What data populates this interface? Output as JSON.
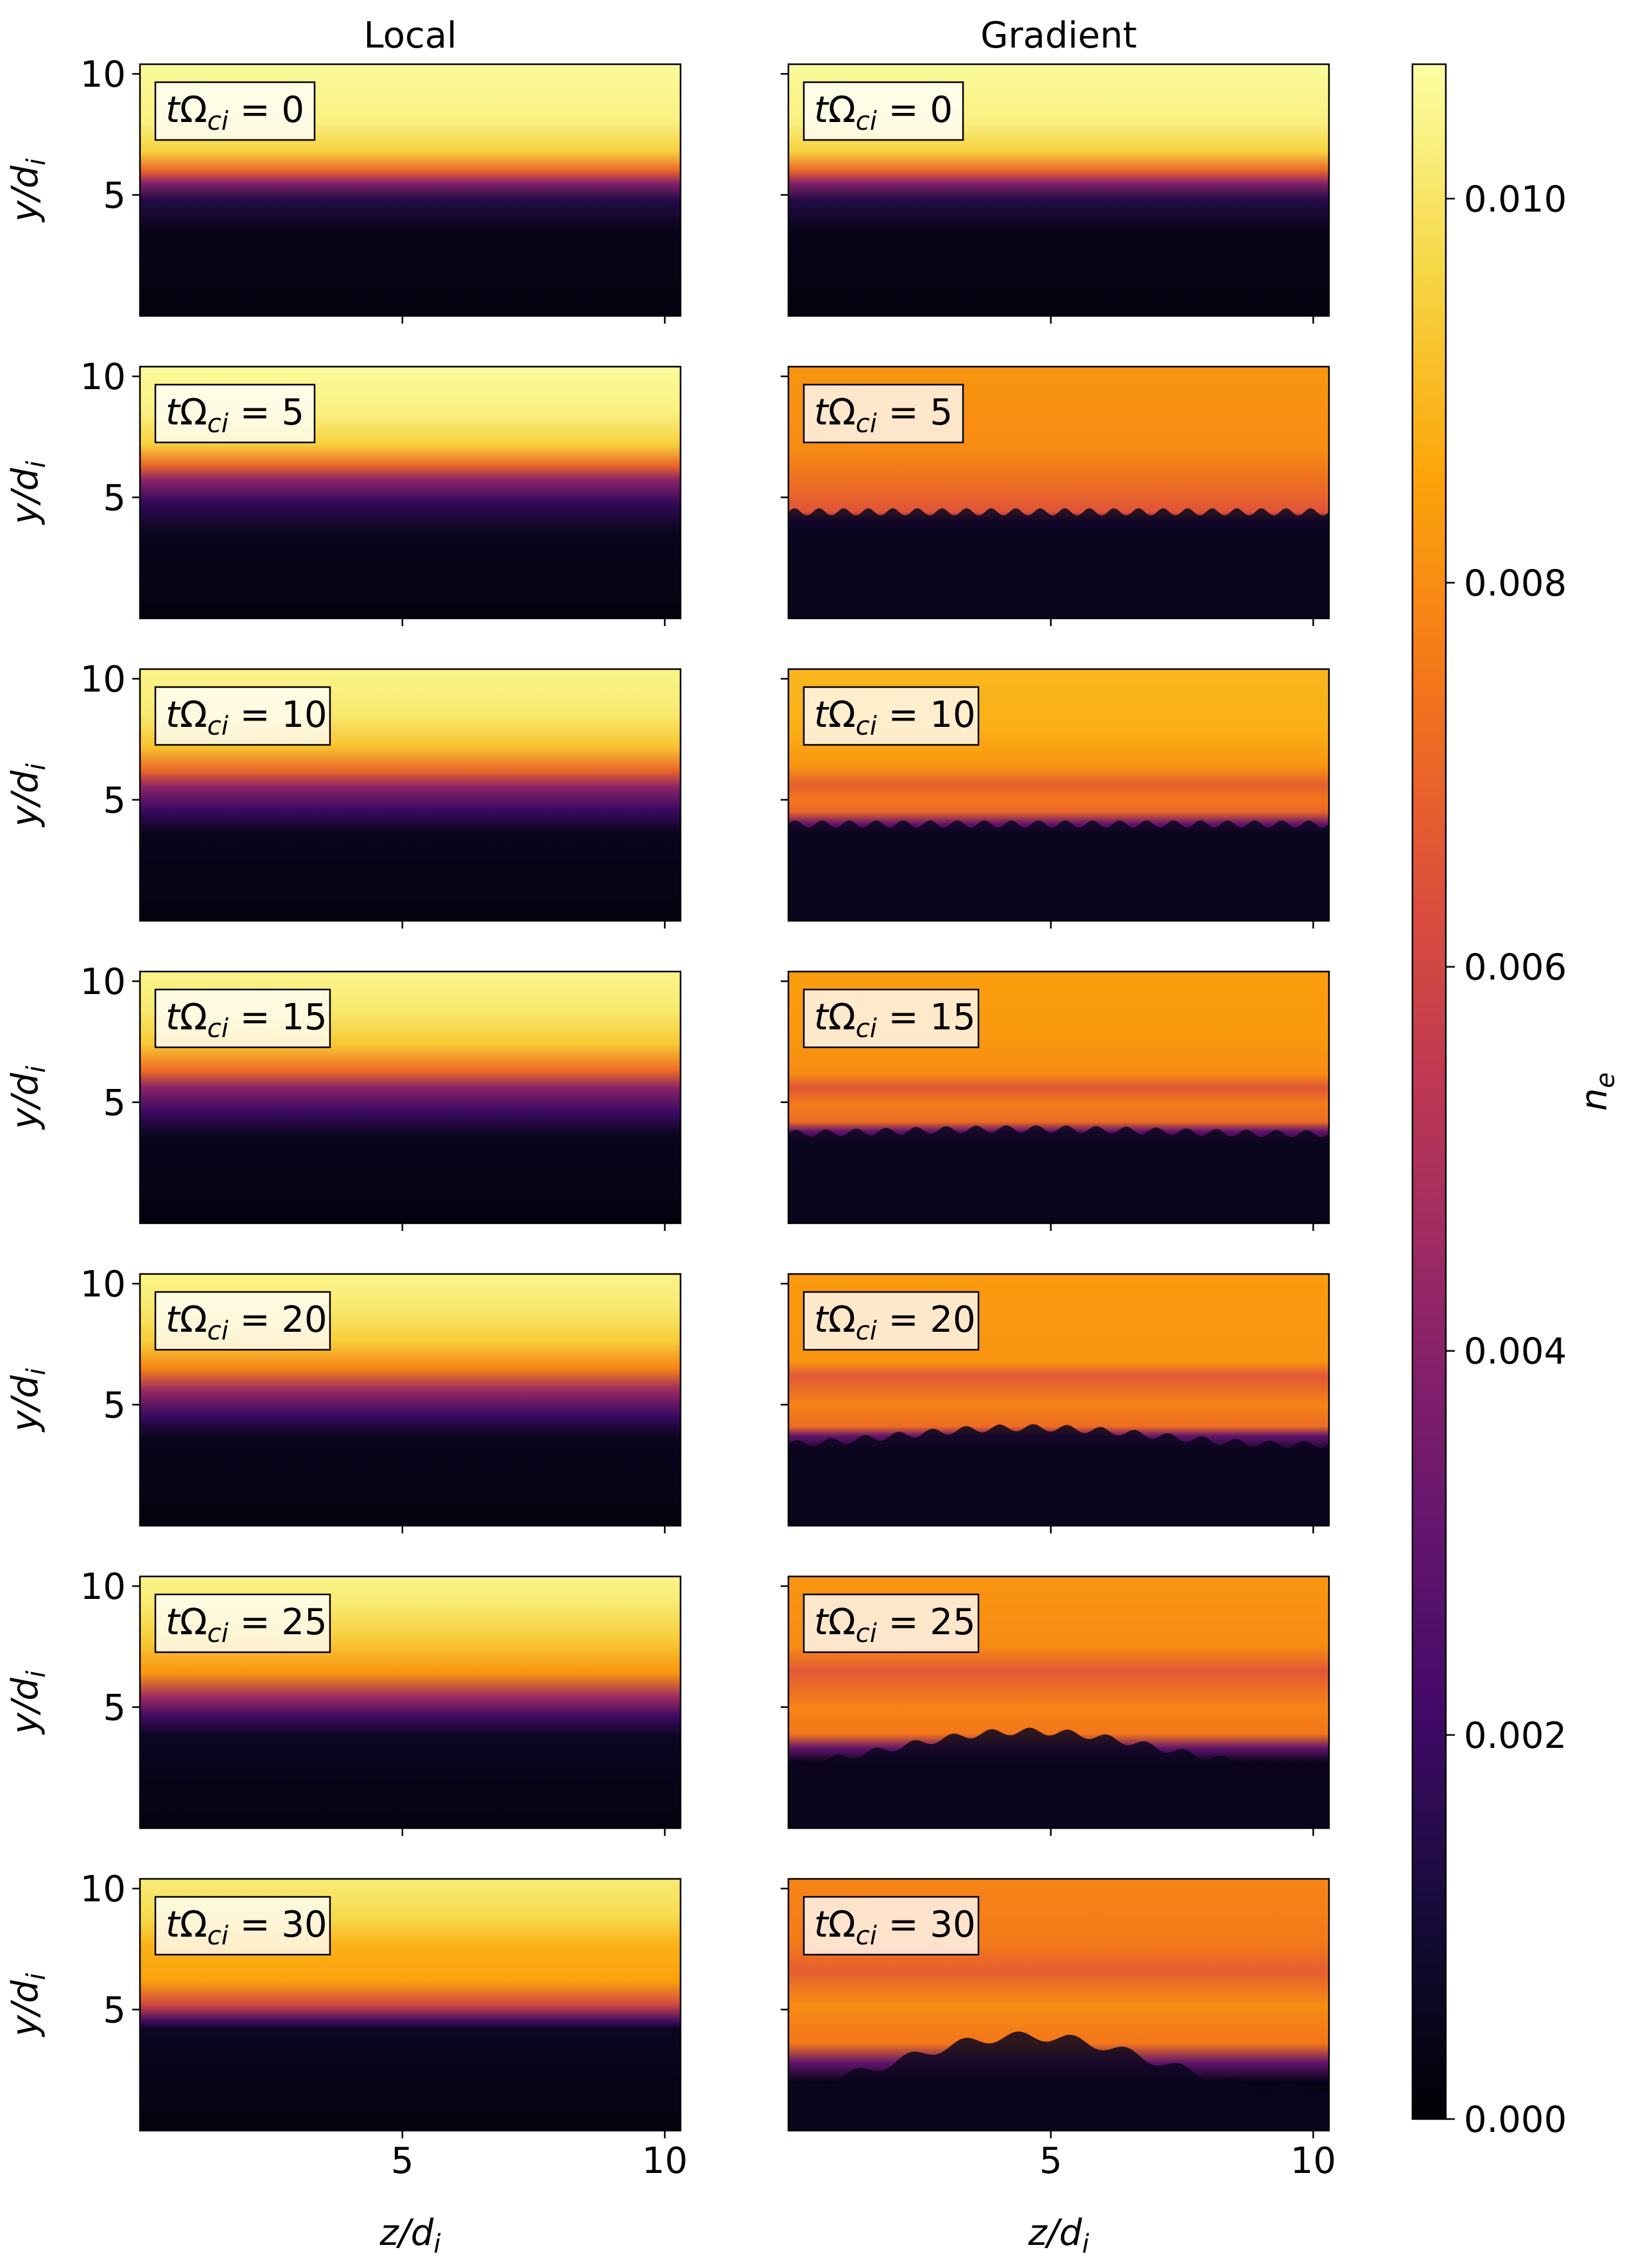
{
  "chart_data": {
    "type": "heatmap",
    "layout": "7 rows x 2 columns, shared colorbar",
    "column_titles": [
      "Local",
      "Gradient"
    ],
    "row_annotations": [
      "tΩ_ci = 0",
      "tΩ_ci = 5",
      "tΩ_ci = 10",
      "tΩ_ci = 15",
      "tΩ_ci = 20",
      "tΩ_ci = 25",
      "tΩ_ci = 30"
    ],
    "row_times": [
      0,
      5,
      10,
      15,
      20,
      25,
      30
    ],
    "annotation_prefix": "tΩ",
    "annotation_sub": "ci",
    "annotation_eq": " = ",
    "xlabel": "z/d_i",
    "ylabel": "y/d_i",
    "xlabel_main": "z/d",
    "ylabel_main": "y/d",
    "label_sub": "i",
    "xlim": [
      0,
      10.3
    ],
    "ylim": [
      0,
      10.4
    ],
    "xticks": [
      5,
      10
    ],
    "xtick_labels": [
      "5",
      "10"
    ],
    "yticks": [
      5,
      10
    ],
    "ytick_labels": [
      "5",
      "10"
    ],
    "colorbar": {
      "label": "n_e",
      "label_main": "n",
      "label_sub": "e",
      "vmin": 0.0,
      "vmax": 0.0107,
      "ticks": [
        0.0,
        0.002,
        0.004,
        0.006,
        0.008,
        0.01
      ],
      "tick_labels": [
        "0.000",
        "0.002",
        "0.004",
        "0.006",
        "0.008",
        "0.010"
      ],
      "colormap": "inferno"
    },
    "panels": [
      {
        "column": "Local",
        "t": 0,
        "profile": [
          [
            0,
            0.0002
          ],
          [
            3.5,
            0.0004
          ],
          [
            4.8,
            0.0014
          ],
          [
            5.5,
            0.004
          ],
          [
            6.0,
            0.007
          ],
          [
            6.8,
            0.0095
          ],
          [
            8,
            0.0103
          ],
          [
            10.4,
            0.0106
          ]
        ],
        "wave": null
      },
      {
        "column": "Local",
        "t": 5,
        "profile": [
          [
            0,
            0.0002
          ],
          [
            3.5,
            0.0005
          ],
          [
            4.8,
            0.0018
          ],
          [
            5.7,
            0.004
          ],
          [
            6.3,
            0.007
          ],
          [
            7.2,
            0.0095
          ],
          [
            8.5,
            0.0103
          ],
          [
            10.4,
            0.0106
          ]
        ],
        "wave": null
      },
      {
        "column": "Local",
        "t": 10,
        "profile": [
          [
            0,
            0.0002
          ],
          [
            3.6,
            0.0005
          ],
          [
            4.6,
            0.002
          ],
          [
            5.5,
            0.004
          ],
          [
            6.2,
            0.007
          ],
          [
            7.2,
            0.0092
          ],
          [
            8.5,
            0.0101
          ],
          [
            10.4,
            0.0104
          ]
        ],
        "wave": null
      },
      {
        "column": "Local",
        "t": 15,
        "profile": [
          [
            0,
            0.0002
          ],
          [
            3.6,
            0.0005
          ],
          [
            4.6,
            0.002
          ],
          [
            5.6,
            0.004
          ],
          [
            6.3,
            0.0072
          ],
          [
            7.4,
            0.0093
          ],
          [
            8.8,
            0.0101
          ],
          [
            10.4,
            0.0104
          ]
        ],
        "wave": null
      },
      {
        "column": "Local",
        "t": 20,
        "profile": [
          [
            0,
            0.0002
          ],
          [
            3.6,
            0.0005
          ],
          [
            4.6,
            0.002
          ],
          [
            5.6,
            0.0045
          ],
          [
            6.5,
            0.0078
          ],
          [
            7.6,
            0.0094
          ],
          [
            9,
            0.0101
          ],
          [
            10.4,
            0.0104
          ]
        ],
        "wave": null
      },
      {
        "column": "Local",
        "t": 25,
        "profile": [
          [
            0,
            0.0002
          ],
          [
            3.8,
            0.0006
          ],
          [
            4.6,
            0.002
          ],
          [
            5.4,
            0.0045
          ],
          [
            6.4,
            0.0082
          ],
          [
            7.8,
            0.0094
          ],
          [
            9.2,
            0.0101
          ],
          [
            10.4,
            0.0104
          ]
        ],
        "wave": null
      },
      {
        "column": "Local",
        "t": 30,
        "profile": [
          [
            0,
            0.0002
          ],
          [
            4.2,
            0.0006
          ],
          [
            4.5,
            0.002
          ],
          [
            5.2,
            0.006
          ],
          [
            6.2,
            0.0085
          ],
          [
            7.6,
            0.0088
          ],
          [
            8.8,
            0.0097
          ],
          [
            10.4,
            0.0102
          ]
        ],
        "wave": null
      },
      {
        "column": "Gradient",
        "t": 0,
        "profile": [
          [
            0,
            0.0002
          ],
          [
            3.5,
            0.0004
          ],
          [
            4.8,
            0.0014
          ],
          [
            5.5,
            0.004
          ],
          [
            6.0,
            0.007
          ],
          [
            6.8,
            0.0095
          ],
          [
            8,
            0.0103
          ],
          [
            10.4,
            0.0106
          ]
        ],
        "wave": null
      },
      {
        "column": "Gradient",
        "t": 5,
        "profile": [
          [
            0,
            0.0002
          ],
          [
            3.4,
            0.0004
          ],
          [
            4.0,
            0.002
          ],
          [
            4.4,
            0.0065
          ],
          [
            5.5,
            0.0072
          ],
          [
            7,
            0.008
          ],
          [
            10.4,
            0.0082
          ]
        ],
        "wave": {
          "amp": 0.15,
          "k": 22,
          "amp2": 0,
          "k2": 0
        }
      },
      {
        "column": "Gradient",
        "t": 10,
        "profile": [
          [
            0,
            0.0002
          ],
          [
            3.4,
            0.0004
          ],
          [
            4.0,
            0.003
          ],
          [
            4.5,
            0.007
          ],
          [
            5.0,
            0.0075
          ],
          [
            5.6,
            0.0068
          ],
          [
            6.4,
            0.0082
          ],
          [
            8,
            0.0088
          ],
          [
            10.4,
            0.0089
          ]
        ],
        "wave": {
          "amp": 0.15,
          "k": 20,
          "amp2": 0,
          "k2": 0
        }
      },
      {
        "column": "Gradient",
        "t": 15,
        "profile": [
          [
            0,
            0.0002
          ],
          [
            3.2,
            0.0004
          ],
          [
            3.8,
            0.003
          ],
          [
            4.2,
            0.0072
          ],
          [
            4.9,
            0.0076
          ],
          [
            5.6,
            0.0066
          ],
          [
            6.2,
            0.008
          ],
          [
            8,
            0.0083
          ],
          [
            10.4,
            0.0084
          ]
        ],
        "wave": {
          "amp": 0.15,
          "k": 18,
          "amp2": 0.1,
          "k2": 1
        }
      },
      {
        "column": "Gradient",
        "t": 20,
        "profile": [
          [
            0,
            0.0002
          ],
          [
            3.0,
            0.0004
          ],
          [
            3.7,
            0.003
          ],
          [
            4.1,
            0.0072
          ],
          [
            5.0,
            0.0078
          ],
          [
            6.2,
            0.0066
          ],
          [
            6.8,
            0.0082
          ],
          [
            10.4,
            0.0083
          ]
        ],
        "wave": {
          "amp": 0.15,
          "k": 16,
          "amp2": 0.35,
          "k2": 1
        }
      },
      {
        "column": "Gradient",
        "t": 25,
        "profile": [
          [
            0,
            0.0002
          ],
          [
            2.7,
            0.0004
          ],
          [
            3.3,
            0.003
          ],
          [
            3.9,
            0.0075
          ],
          [
            5.0,
            0.0078
          ],
          [
            6.5,
            0.0066
          ],
          [
            7.5,
            0.008
          ],
          [
            10.4,
            0.0082
          ]
        ],
        "wave": {
          "amp": 0.15,
          "k": 14,
          "amp2": 0.7,
          "k2": 1
        }
      },
      {
        "column": "Gradient",
        "t": 30,
        "profile": [
          [
            0,
            0.0002
          ],
          [
            2.0,
            0.0004
          ],
          [
            2.8,
            0.003
          ],
          [
            3.6,
            0.0075
          ],
          [
            5.2,
            0.008
          ],
          [
            6.6,
            0.0068
          ],
          [
            7.8,
            0.0076
          ],
          [
            10.4,
            0.0078
          ]
        ],
        "wave": {
          "amp": 0.2,
          "k": 10,
          "amp2": 1.1,
          "k2": 1
        }
      }
    ]
  }
}
